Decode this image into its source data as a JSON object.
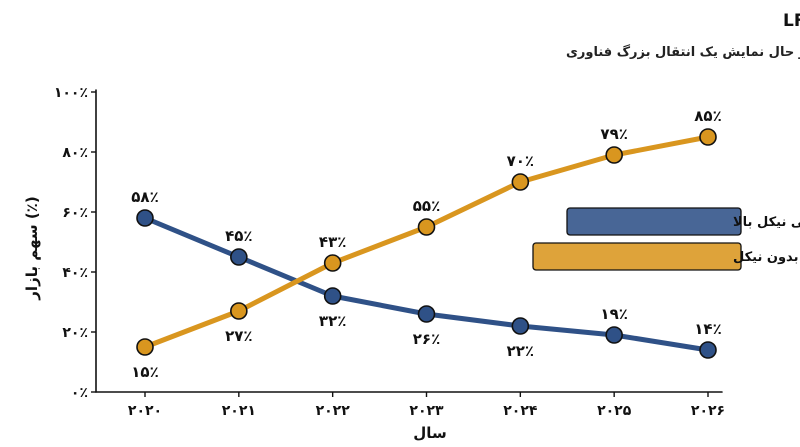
{
  "chart_data": {
    "type": "line",
    "title": "تغییر سهم بازار باتری در چین: کاهش شدید سه‌تایی نیکل بالا در مقابل افزایش LFP/LMFP (۲۰۲۶-۲۰۲۰)",
    "subtitle": "روند تحولی سهم بازار در حال نمایش یک انتقال بزرگ فناوری",
    "xlabel": "سال",
    "ylabel": "سهم بازار (٪)",
    "categories": [
      "۲۰۲۰",
      "۲۰۲۱",
      "۲۰۲۲",
      "۲۰۲۳",
      "۲۰۲۴",
      "۲۰۲۵",
      "۲۰۲۶"
    ],
    "ylim": [
      0,
      100
    ],
    "yticks": [
      0,
      20,
      40,
      60,
      80,
      100
    ],
    "ytick_labels": [
      "۰٪",
      "۲۰٪",
      "۴۰٪",
      "۶۰٪",
      "۸۰٪",
      "۱۰۰٪"
    ],
    "grid": false,
    "legend_position": "right",
    "series": [
      {
        "name": "باتری سه‌تایی نیکل بالا",
        "color": "#2f5187",
        "values": [
          58,
          45,
          32,
          26,
          22,
          19,
          14
        ],
        "labels": [
          "۵۸٪",
          "۴۵٪",
          "۳۲٪",
          "۲۶٪",
          "۲۲٪",
          "۱۹٪",
          "۱۴٪"
        ],
        "label_side": [
          "above",
          "above",
          "below",
          "below",
          "below",
          "above",
          "above"
        ]
      },
      {
        "name": "باتری LFP/LMFP بدون نیکل",
        "color": "#d9961f",
        "values": [
          15,
          27,
          43,
          55,
          70,
          79,
          85
        ],
        "labels": [
          "۱۵٪",
          "۲۷٪",
          "۴۳٪",
          "۵۵٪",
          "۷۰٪",
          "۷۹٪",
          "۸۵٪"
        ],
        "label_side": [
          "below",
          "below",
          "above",
          "above",
          "above",
          "above",
          "above"
        ]
      }
    ]
  }
}
